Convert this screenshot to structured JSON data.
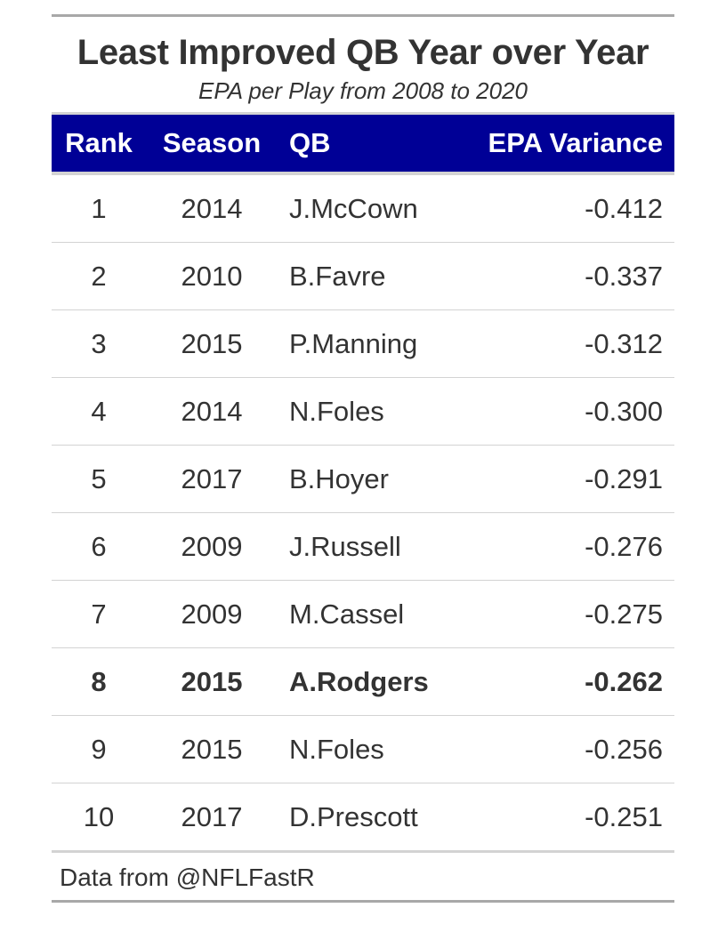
{
  "title": "Least Improved QB Year over Year",
  "subtitle": "EPA per Play from 2008 to 2020",
  "footer": "Data from @NFLFastR",
  "colors": {
    "header_bg": "#000096",
    "header_text": "#ffffff",
    "rule": "#d3d3d3"
  },
  "chart_data": {
    "type": "table",
    "title": "Least Improved QB Year over Year",
    "subtitle": "EPA per Play from 2008 to 2020",
    "columns": [
      "Rank",
      "Season",
      "QB",
      "EPA Variance"
    ],
    "rows": [
      {
        "rank": "1",
        "season": "2014",
        "qb": "J.McCown",
        "epa": "-0.412",
        "bold": false
      },
      {
        "rank": "2",
        "season": "2010",
        "qb": "B.Favre",
        "epa": "-0.337",
        "bold": false
      },
      {
        "rank": "3",
        "season": "2015",
        "qb": "P.Manning",
        "epa": "-0.312",
        "bold": false
      },
      {
        "rank": "4",
        "season": "2014",
        "qb": "N.Foles",
        "epa": "-0.300",
        "bold": false
      },
      {
        "rank": "5",
        "season": "2017",
        "qb": "B.Hoyer",
        "epa": "-0.291",
        "bold": false
      },
      {
        "rank": "6",
        "season": "2009",
        "qb": "J.Russell",
        "epa": "-0.276",
        "bold": false
      },
      {
        "rank": "7",
        "season": "2009",
        "qb": "M.Cassel",
        "epa": "-0.275",
        "bold": false
      },
      {
        "rank": "8",
        "season": "2015",
        "qb": "A.Rodgers",
        "epa": "-0.262",
        "bold": true
      },
      {
        "rank": "9",
        "season": "2015",
        "qb": "N.Foles",
        "epa": "-0.256",
        "bold": false
      },
      {
        "rank": "10",
        "season": "2017",
        "qb": "D.Prescott",
        "epa": "-0.251",
        "bold": false
      }
    ]
  }
}
